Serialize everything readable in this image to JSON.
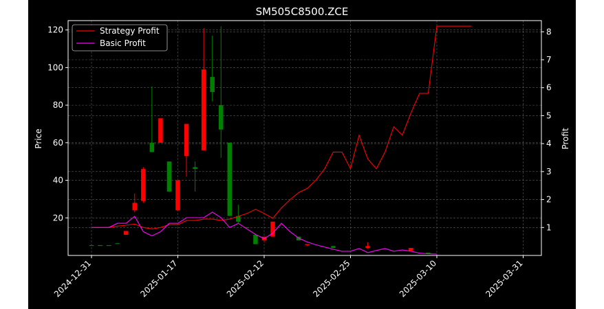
{
  "chart_data": {
    "type": "candlestick",
    "title": "SM505C8500.ZCE",
    "ylabel": "Price",
    "y2label": "Profit",
    "ylim": [
      0,
      125
    ],
    "y2lim": [
      0,
      8.4
    ],
    "yticks": [
      20,
      40,
      60,
      80,
      100,
      120
    ],
    "y2ticks": [
      1,
      2,
      3,
      4,
      5,
      6,
      7,
      8
    ],
    "xticks": [
      "2024-12-31",
      "2025-01-17",
      "2025-02-12",
      "2025-02-25",
      "2025-03-10",
      "2025-03-31"
    ],
    "grid": true,
    "legend": "top-left",
    "colors": {
      "up": "#008000",
      "down": "#ff0000",
      "strategy": "#ff0000",
      "basic": "#ff00ff",
      "background": "#000000",
      "axis": "#ffffff"
    },
    "candles": [
      {
        "i": 0,
        "open": 5.5,
        "close": 5.5,
        "high": 5.5,
        "low": 5.5
      },
      {
        "i": 1,
        "open": 5.5,
        "close": 5.5,
        "high": 5.5,
        "low": 5.5
      },
      {
        "i": 2,
        "open": 5.5,
        "close": 5.5,
        "high": 5.5,
        "low": 5.5
      },
      {
        "i": 3,
        "open": 6.5,
        "close": 6.5,
        "high": 6.5,
        "low": 6.5
      },
      {
        "i": 4,
        "open": 13,
        "close": 11,
        "high": 13,
        "low": 11
      },
      {
        "i": 5,
        "open": 28,
        "close": 24,
        "high": 33,
        "low": 23
      },
      {
        "i": 6,
        "open": 46,
        "close": 29,
        "high": 47,
        "low": 28
      },
      {
        "i": 7,
        "open": 55,
        "close": 60,
        "high": 90,
        "low": 55
      },
      {
        "i": 8,
        "open": 73,
        "close": 60,
        "high": 73,
        "low": 60
      },
      {
        "i": 9,
        "open": 34,
        "close": 50,
        "high": 50,
        "low": 34
      },
      {
        "i": 10,
        "open": 40,
        "close": 24,
        "high": 40,
        "low": 24
      },
      {
        "i": 11,
        "open": 70,
        "close": 53,
        "high": 70,
        "low": 42
      },
      {
        "i": 12,
        "open": 46,
        "close": 47,
        "high": 50,
        "low": 34
      },
      {
        "i": 13,
        "open": 99,
        "close": 56,
        "high": 121,
        "low": 56
      },
      {
        "i": 14,
        "open": 87,
        "close": 95,
        "high": 117,
        "low": 82
      },
      {
        "i": 15,
        "open": 67,
        "close": 80,
        "high": 122,
        "low": 52
      },
      {
        "i": 16,
        "open": 21,
        "close": 60,
        "high": 60,
        "low": 21
      },
      {
        "i": 17,
        "open": 18,
        "close": 21,
        "high": 27,
        "low": 17
      },
      {
        "i": 18,
        "open": 15,
        "close": 15,
        "high": 15,
        "low": 15
      },
      {
        "i": 19,
        "open": 6,
        "close": 11,
        "high": 11,
        "low": 6
      },
      {
        "i": 20,
        "open": 10,
        "close": 8,
        "high": 10,
        "low": 7
      },
      {
        "i": 21,
        "open": 18,
        "close": 10,
        "high": 18,
        "low": 10
      },
      {
        "i": 24,
        "open": 8,
        "close": 10,
        "high": 10,
        "low": 8
      },
      {
        "i": 25,
        "open": 6,
        "close": 5.5,
        "high": 6,
        "low": 5
      },
      {
        "i": 28,
        "open": 4,
        "close": 5,
        "high": 5,
        "low": 4
      },
      {
        "i": 32,
        "open": 5,
        "close": 4,
        "high": 7,
        "low": 3.5
      },
      {
        "i": 37,
        "open": 4,
        "close": 2.5,
        "high": 4,
        "low": 2.5
      },
      {
        "i": 39,
        "open": 1.5,
        "close": 1.5,
        "high": 1.5,
        "low": 1.5
      }
    ],
    "series": [
      {
        "name": "Strategy Profit",
        "values": [
          1.0,
          1.0,
          1.0,
          1.05,
          1.08,
          1.12,
          1.0,
          0.95,
          1.0,
          1.1,
          1.1,
          1.25,
          1.25,
          1.3,
          1.3,
          1.25,
          1.3,
          1.4,
          1.5,
          1.65,
          1.5,
          1.33,
          1.7,
          2.0,
          2.25,
          2.4,
          2.7,
          3.1,
          3.7,
          3.7,
          3.1,
          4.3,
          3.45,
          3.1,
          3.7,
          4.6,
          4.3,
          5.1,
          5.8,
          5.8,
          8.2,
          8.2,
          8.2,
          8.2,
          8.2
        ]
      },
      {
        "name": "Basic Profit",
        "values": [
          1.0,
          1.0,
          1.0,
          1.15,
          1.15,
          1.4,
          0.85,
          0.7,
          0.85,
          1.15,
          1.15,
          1.35,
          1.35,
          1.35,
          1.55,
          1.35,
          1.0,
          1.15,
          0.95,
          0.75,
          0.6,
          0.8,
          1.15,
          0.85,
          0.62,
          0.48,
          0.38,
          0.3,
          0.22,
          0.15,
          0.15,
          0.25,
          0.1,
          0.18,
          0.25,
          0.15,
          0.2,
          0.15,
          0.08,
          0.06,
          0.05
        ]
      }
    ]
  }
}
